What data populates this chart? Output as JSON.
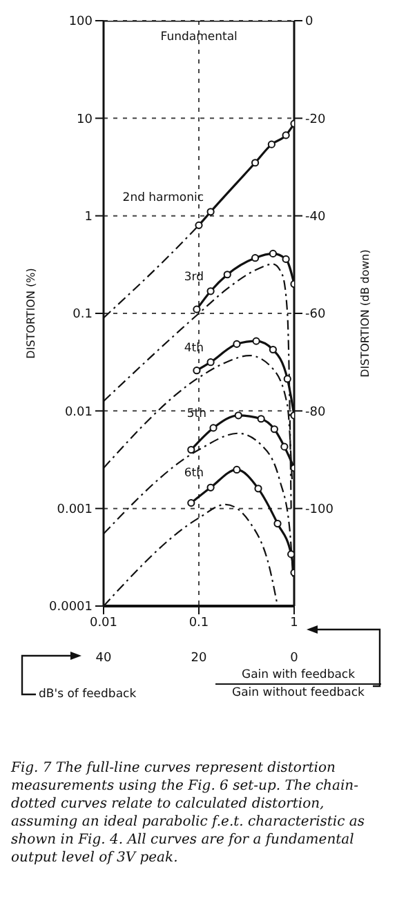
{
  "chart_data": {
    "type": "line",
    "ylabel": "DISTORTION (%)",
    "y2label": "DISTORTION (dB down)",
    "xlabel": "Gain with feedback\nGain without feedback",
    "x2label": "dB's of feedback",
    "log": "xy",
    "grid": true,
    "xlim": [
      0.01,
      1
    ],
    "xticks": [
      0.01,
      0.1,
      1
    ],
    "x2lim": [
      40,
      0
    ],
    "x2ticks": [
      40,
      20,
      0
    ],
    "ylim": [
      0.0001,
      100
    ],
    "yticks": [
      0.0001,
      0.001,
      0.01,
      0.1,
      1,
      10,
      100
    ],
    "y2lim": [
      -120,
      0
    ],
    "y2ticks": [
      0,
      -20,
      -40,
      -60,
      -80,
      -100
    ],
    "series": [
      {
        "name": "Fundamental",
        "color": "#111111",
        "line_style": "solid",
        "marker": "none",
        "x": [
          0.01,
          0.3,
          1
        ],
        "values": [
          100,
          100,
          100
        ]
      },
      {
        "name": "2nd harmonic",
        "color": "#111111",
        "line_style": "solid",
        "marker": "circle",
        "x": [
          0.1,
          0.133,
          0.39,
          0.58,
          0.82,
          1
        ],
        "values": [
          0.8,
          1.1,
          3.5,
          5.4,
          6.7,
          8.8
        ]
      },
      {
        "color": "#111111",
        "line_style": "dashed",
        "marker": "none",
        "x": [
          0.01,
          0.05,
          0.1
        ],
        "values": [
          0.09,
          0.4,
          0.8
        ]
      },
      {
        "name": "3rd",
        "color": "#111111",
        "line_style": "solid",
        "marker": "circle",
        "x": [
          0.095,
          0.133,
          0.199,
          0.39,
          0.6,
          0.82,
          1
        ],
        "values": [
          0.11,
          0.169,
          0.25,
          0.37,
          0.41,
          0.36,
          0.2
        ]
      },
      {
        "color": "#111111",
        "line_style": "dashed",
        "marker": "none",
        "x": [
          0.01,
          0.1,
          0.2,
          0.4,
          0.6,
          0.75,
          0.85,
          0.9,
          0.93
        ],
        "values": [
          0.0126,
          0.1,
          0.18,
          0.28,
          0.32,
          0.25,
          0.1,
          0.01,
          0.001
        ]
      },
      {
        "name": "4th",
        "color": "#111111",
        "line_style": "solid",
        "marker": "circle",
        "x": [
          0.095,
          0.133,
          0.25,
          0.4,
          0.6,
          0.85,
          1
        ],
        "values": [
          0.026,
          0.0316,
          0.0485,
          0.052,
          0.0425,
          0.0213,
          0.009
        ]
      },
      {
        "color": "#111111",
        "line_style": "dashed",
        "marker": "none",
        "x": [
          0.01,
          0.1,
          0.2,
          0.34,
          0.6,
          0.85,
          0.95
        ],
        "values": [
          0.0026,
          0.022,
          0.032,
          0.037,
          0.027,
          0.0114,
          0.002
        ]
      },
      {
        "name": "5th",
        "color": "#111111",
        "line_style": "solid",
        "marker": "circle",
        "x": [
          0.083,
          0.142,
          0.26,
          0.45,
          0.62,
          0.79,
          1
        ],
        "values": [
          0.004,
          0.0067,
          0.009,
          0.0083,
          0.0065,
          0.0043,
          0.0026
        ]
      },
      {
        "color": "#111111",
        "line_style": "dashed",
        "marker": "none",
        "x": [
          0.01,
          0.1,
          0.26,
          0.45,
          0.7,
          0.9,
          0.97
        ],
        "values": [
          0.00055,
          0.004,
          0.0059,
          0.0045,
          0.002,
          0.0006,
          0.0002
        ]
      },
      {
        "name": "6th",
        "color": "#111111",
        "line_style": "solid",
        "marker": "circle",
        "x": [
          0.083,
          0.133,
          0.25,
          0.42,
          0.67,
          0.93,
          1
        ],
        "values": [
          0.00114,
          0.00164,
          0.0025,
          0.0016,
          0.0007,
          0.00034,
          0.00022
        ]
      },
      {
        "color": "#111111",
        "line_style": "dashed",
        "marker": "none",
        "x": [
          0.01,
          0.1,
          0.19,
          0.35,
          0.55,
          0.67
        ],
        "values": [
          0.0001,
          0.0008,
          0.0011,
          0.0007,
          0.00025,
          0.0001
        ]
      }
    ],
    "annotations": [
      "Fig. 7 The full-line curves represent distortion measurements using the Fig. 6 set-up. The chain-dotted curves relate to calculated distortion, assuming an ideal parabolic f.e.t. characteristic as shown in Fig. 4. All curves are for a fundamental output level of 3V peak."
    ]
  }
}
